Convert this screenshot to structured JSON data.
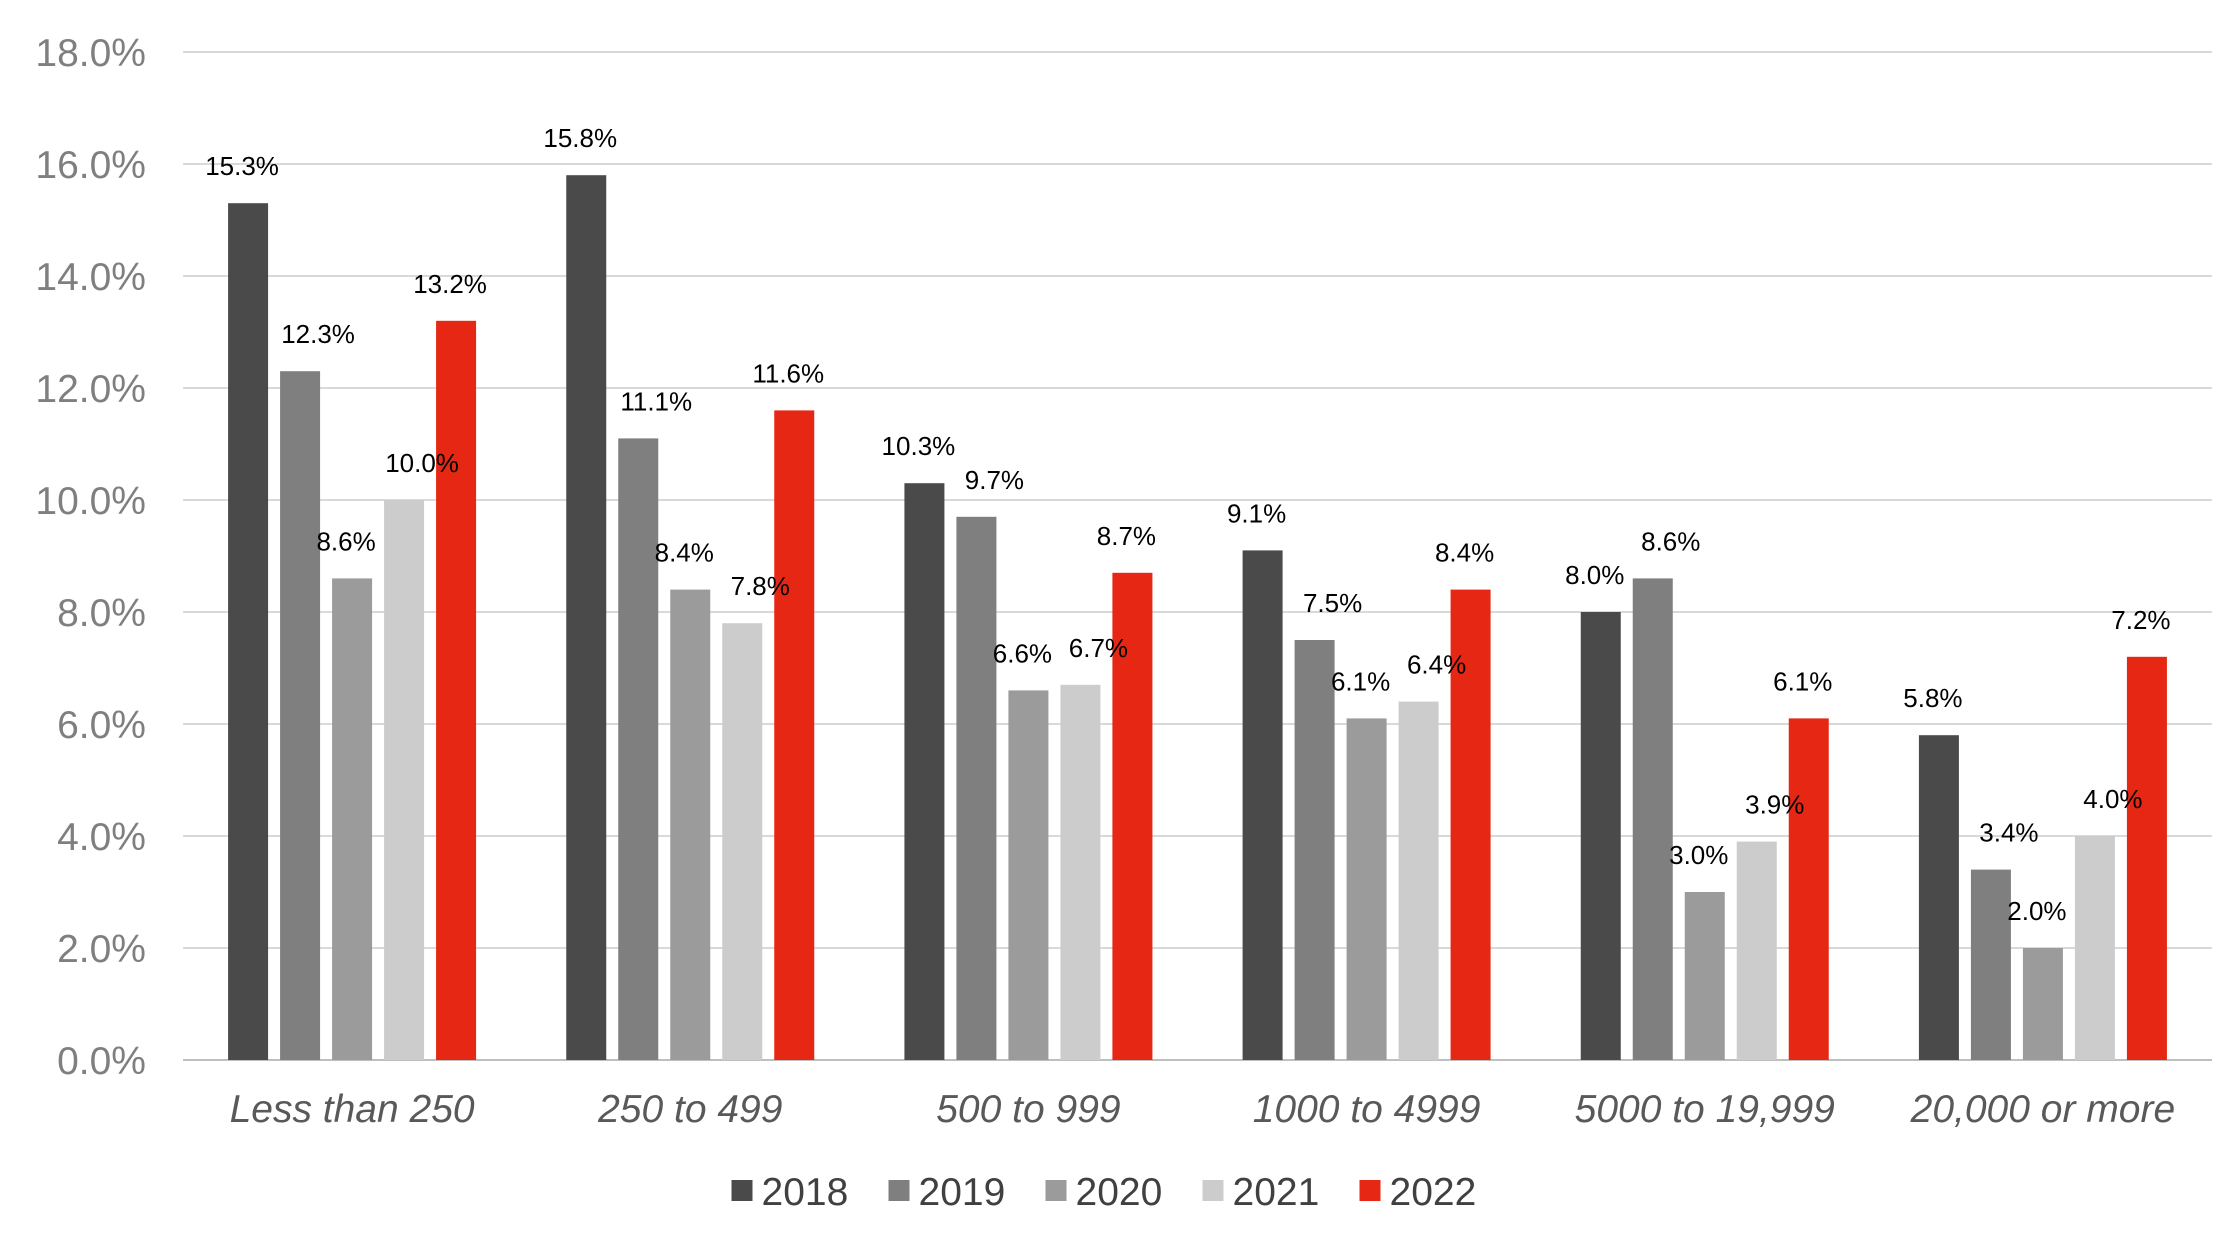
{
  "chart_data": {
    "type": "bar",
    "title": "",
    "xlabel": "",
    "ylabel": "",
    "ylim": [
      0,
      18
    ],
    "y_ticks": [
      "0.0%",
      "2.0%",
      "4.0%",
      "6.0%",
      "8.0%",
      "10.0%",
      "12.0%",
      "14.0%",
      "16.0%",
      "18.0%"
    ],
    "grid": true,
    "legend_position": "bottom",
    "categories": [
      "Less than 250",
      "250 to 499",
      "500 to 999",
      "1000 to 4999",
      "5000 to 19,999",
      "20,000 or more"
    ],
    "series": [
      {
        "name": "2018",
        "color": "#4a4a4a",
        "label_color": "#000000",
        "values": [
          15.3,
          15.8,
          10.3,
          9.1,
          8.0,
          5.8
        ],
        "labels": [
          "15.3%",
          "15.8%",
          "10.3%",
          "9.1%",
          "8.0%",
          "5.8%"
        ]
      },
      {
        "name": "2019",
        "color": "#7f7f7f",
        "label_color": "#000000",
        "values": [
          12.3,
          11.1,
          9.7,
          7.5,
          8.6,
          3.4
        ],
        "labels": [
          "12.3%",
          "11.1%",
          "9.7%",
          "7.5%",
          "8.6%",
          "3.4%"
        ]
      },
      {
        "name": "2020",
        "color": "#9b9b9b",
        "label_color": "#000000",
        "values": [
          8.6,
          8.4,
          6.6,
          6.1,
          3.0,
          2.0
        ],
        "labels": [
          "8.6%",
          "8.4%",
          "6.6%",
          "6.1%",
          "3.0%",
          "2.0%"
        ]
      },
      {
        "name": "2021",
        "color": "#cccccc",
        "label_color": "#000000",
        "values": [
          10.0,
          7.8,
          6.7,
          6.4,
          3.9,
          4.0
        ],
        "labels": [
          "10.0%",
          "7.8%",
          "6.7%",
          "6.4%",
          "3.9%",
          "4.0%"
        ]
      },
      {
        "name": "2022",
        "color": "#e52713",
        "label_color": "#e52713",
        "values": [
          13.2,
          11.6,
          8.7,
          8.4,
          6.1,
          7.2
        ],
        "labels": [
          "13.2%",
          "11.6%",
          "8.7%",
          "8.4%",
          "6.1%",
          "7.2%"
        ]
      }
    ]
  }
}
